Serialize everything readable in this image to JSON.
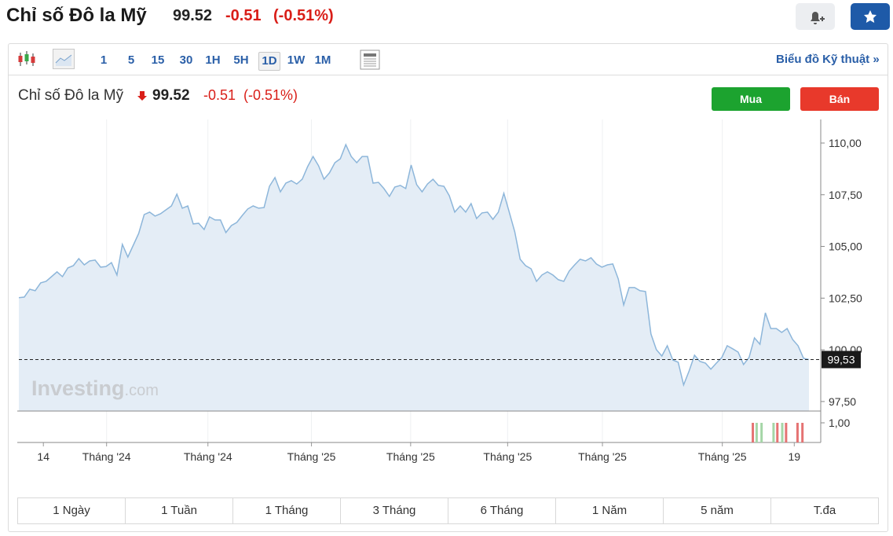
{
  "header": {
    "title": "Chỉ số Đô la Mỹ",
    "price": "99.52",
    "change": "-0.51",
    "change_pct": "(-0.51%)"
  },
  "toolbar": {
    "intervals": [
      "1",
      "5",
      "15",
      "30",
      "1H",
      "5H",
      "1D",
      "1W",
      "1M"
    ],
    "active_interval": "1D",
    "link": "Biểu đồ Kỹ thuật"
  },
  "trade_buttons": {
    "buy": "Mua",
    "sell": "Bán"
  },
  "watermark": {
    "brand": "Investing",
    "suffix": ".com"
  },
  "chart_data": {
    "type": "area",
    "color": "#8db6da",
    "fill": "#e4edf6",
    "values": [
      102.52,
      102.55,
      102.93,
      102.86,
      103.24,
      103.31,
      103.54,
      103.77,
      103.54,
      103.96,
      104.07,
      104.41,
      104.11,
      104.3,
      104.34,
      104.0,
      104.03,
      104.22,
      103.62,
      105.1,
      104.49,
      105.06,
      105.63,
      106.54,
      106.66,
      106.47,
      106.58,
      106.77,
      106.96,
      107.53,
      106.85,
      106.96,
      106.09,
      106.12,
      105.82,
      106.43,
      106.28,
      106.28,
      105.67,
      106.01,
      106.16,
      106.5,
      106.81,
      106.96,
      106.85,
      106.88,
      107.91,
      108.33,
      107.64,
      108.06,
      108.18,
      108.02,
      108.25,
      108.86,
      109.35,
      108.9,
      108.25,
      108.56,
      109.05,
      109.24,
      109.92,
      109.35,
      109.05,
      109.35,
      109.35,
      108.06,
      108.1,
      107.8,
      107.42,
      107.87,
      107.95,
      107.8,
      108.94,
      107.99,
      107.64,
      108.02,
      108.25,
      107.95,
      107.91,
      107.45,
      106.66,
      106.96,
      106.66,
      107.07,
      106.35,
      106.62,
      106.66,
      106.31,
      106.66,
      107.57,
      106.66,
      105.71,
      104.38,
      104.07,
      103.92,
      103.31,
      103.62,
      103.77,
      103.62,
      103.39,
      103.31,
      103.81,
      104.11,
      104.38,
      104.3,
      104.45,
      104.15,
      104.0,
      104.11,
      104.15,
      103.43,
      102.17,
      103.01,
      103.01,
      102.86,
      102.82,
      100.77,
      100.01,
      99.7,
      100.2,
      99.51,
      99.4,
      98.3,
      98.98,
      99.74,
      99.44,
      99.36,
      99.06,
      99.36,
      99.63,
      100.2,
      100.05,
      99.89,
      99.29,
      99.63,
      100.58,
      100.27,
      101.79,
      101.03,
      101.03,
      100.84,
      101.03,
      100.5,
      100.2,
      99.59,
      99.53
    ],
    "ylim": [
      97.04,
      111.14
    ],
    "yticks": [
      {
        "value": 97.5,
        "label": "97,50"
      },
      {
        "value": 100,
        "label": "100,00"
      },
      {
        "value": 102.5,
        "label": "102,50"
      },
      {
        "value": 105,
        "label": "105,00"
      },
      {
        "value": 107.5,
        "label": "107,50"
      },
      {
        "value": 110,
        "label": "110,00"
      }
    ],
    "xticks": [
      {
        "value": 4.5,
        "label": "14"
      },
      {
        "value": 16.1,
        "label": "Tháng '24"
      },
      {
        "value": 34.7,
        "label": "Tháng '24"
      },
      {
        "value": 53.7,
        "label": "Tháng '25"
      },
      {
        "value": 71.9,
        "label": "Tháng '25"
      },
      {
        "value": 89.7,
        "label": "Tháng '25"
      },
      {
        "value": 107.1,
        "label": "Tháng '25"
      },
      {
        "value": 129.1,
        "label": "Tháng '25"
      },
      {
        "value": 142.3,
        "label": "19"
      }
    ],
    "last_price": {
      "value": 99.53,
      "label": "99,53"
    },
    "volume": {
      "ylim": [
        0,
        1.6
      ],
      "yticks": [
        {
          "value": 1,
          "label": "1,00"
        }
      ],
      "bars": [
        {
          "x": 134.7,
          "value": 1,
          "color": "#e57373"
        },
        {
          "x": 135.4,
          "value": 1,
          "color": "#a5d6a7"
        },
        {
          "x": 136.3,
          "value": 1,
          "color": "#a5d6a7"
        },
        {
          "x": 138.5,
          "value": 1,
          "color": "#a5d6a7"
        },
        {
          "x": 139.2,
          "value": 1,
          "color": "#e57373"
        },
        {
          "x": 140.1,
          "value": 1,
          "color": "#a5d6a7"
        },
        {
          "x": 140.8,
          "value": 1,
          "color": "#e57373"
        },
        {
          "x": 142.9,
          "value": 1,
          "color": "#e57373"
        },
        {
          "x": 143.8,
          "value": 1,
          "color": "#e57373"
        }
      ]
    }
  },
  "ranges": [
    "1 Ngày",
    "1 Tuần",
    "1 Tháng",
    "3 Tháng",
    "6 Tháng",
    "1 Năm",
    "5 năm",
    "T.đa"
  ]
}
